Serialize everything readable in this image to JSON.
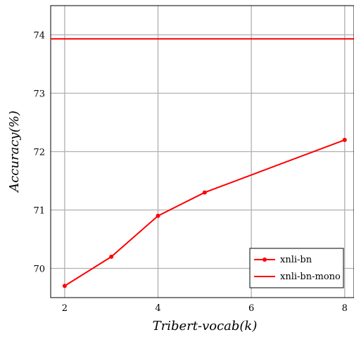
{
  "chart_data": {
    "type": "line",
    "xlabel": "Tribert-vocab(k)",
    "ylabel": "Accuracy(%)",
    "xlim": [
      1.7,
      8.2
    ],
    "ylim": [
      69.5,
      74.5
    ],
    "xticks": [
      2,
      4,
      6,
      8
    ],
    "yticks": [
      70,
      71,
      72,
      73,
      74
    ],
    "grid": true,
    "legend_position": "bottom-right",
    "series": [
      {
        "name": "xnli-bn",
        "color": "#ff0000",
        "marker": "circle",
        "x": [
          2,
          3,
          4,
          5,
          8
        ],
        "y": [
          69.7,
          70.2,
          70.9,
          71.3,
          72.2
        ]
      },
      {
        "name": "xnli-bn-mono",
        "color": "#ff0000",
        "marker": "none",
        "y_constant": 73.93
      }
    ]
  }
}
